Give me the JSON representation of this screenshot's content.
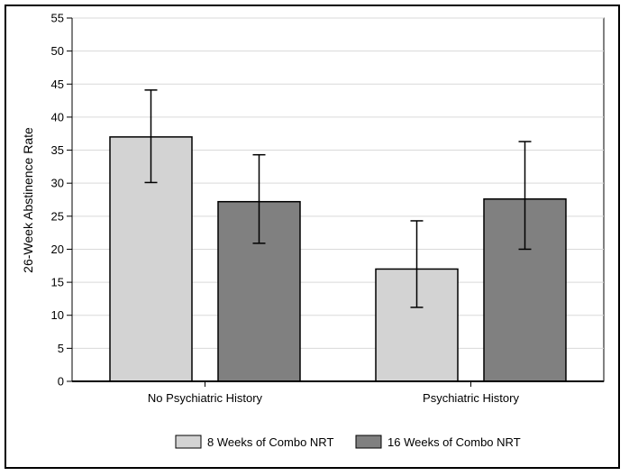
{
  "chart_data": {
    "type": "bar",
    "title": "",
    "xlabel": "",
    "ylabel": "26-Week Abstinence Rate",
    "ylim": [
      0,
      55
    ],
    "yticks": [
      0,
      5,
      10,
      15,
      20,
      25,
      30,
      35,
      40,
      45,
      50,
      55
    ],
    "grid": true,
    "legend_position": "bottom",
    "categories": [
      "No Psychiatric History",
      "Psychiatric History"
    ],
    "series": [
      {
        "name": "8 Weeks of Combo NRT",
        "color": "#d3d3d3",
        "values": [
          37.0,
          17.0
        ],
        "error_low": [
          30.1,
          11.2
        ],
        "error_high": [
          44.1,
          24.3
        ]
      },
      {
        "name": "16 Weeks of Combo NRT",
        "color": "#808080",
        "values": [
          27.2,
          27.6
        ],
        "error_low": [
          20.9,
          20.0
        ],
        "error_high": [
          34.3,
          36.3
        ]
      }
    ]
  }
}
